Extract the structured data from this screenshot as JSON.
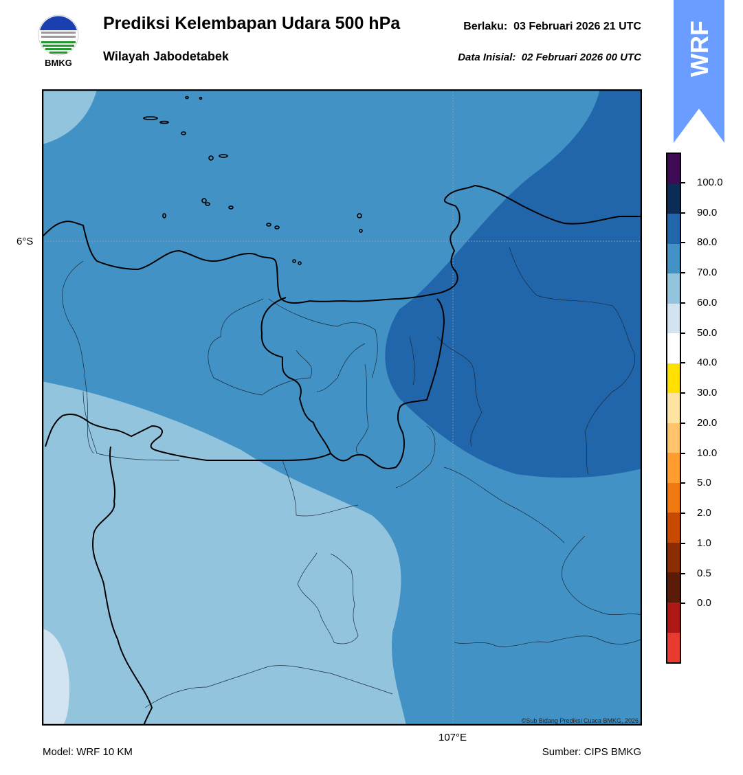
{
  "header": {
    "title": "Prediksi Kelembapan Udara 500 hPa",
    "subtitle": "Wilayah Jabodetabek",
    "valid_label": "Berlaku:",
    "valid_time": "03 Februari 2026 21 UTC",
    "init_label": "Data Inisial:",
    "init_time": "02 Februari 2026 00 UTC"
  },
  "logo": {
    "text": "BMKG",
    "icon": "bmkg-logo"
  },
  "badge": {
    "text": "WRF",
    "color": "#6a9dff"
  },
  "map": {
    "lat_label": "6°S",
    "lon_label": "107°E",
    "credit": "©Sub Bidang Prediksi Cuaca BMKG, 2026",
    "fill_colors": {
      "50-60": "#d3e4f0",
      "60-70": "#92c4de",
      "70-80": "#4292c6",
      "80-90": "#2165ab"
    }
  },
  "colorbar": {
    "ticks": [
      "100.0",
      "90.0",
      "80.0",
      "70.0",
      "60.0",
      "50.0",
      "40.0",
      "30.0",
      "20.0",
      "10.0",
      "5.0",
      "2.0",
      "1.0",
      "0.5",
      "0.0"
    ],
    "colors_top_to_bottom": [
      "#3f0a55",
      "#0b2c55",
      "#2165ab",
      "#4292c6",
      "#92c4de",
      "#d3e4f0",
      "#ffffff",
      "#ffe000",
      "#ffe3a0",
      "#ffc36a",
      "#ff9e2e",
      "#f07a10",
      "#c84a00",
      "#8a2c00",
      "#5a1b08",
      "#b01818",
      "#e83a2e"
    ]
  },
  "footer": {
    "model": "Model: WRF 10 KM",
    "source": "Sumber: CIPS BMKG"
  }
}
